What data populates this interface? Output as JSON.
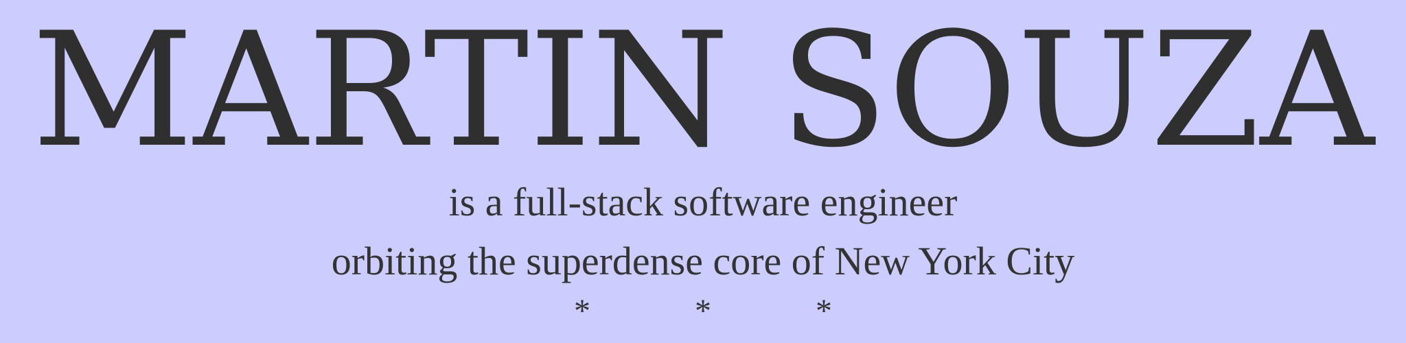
{
  "header": {
    "name": "MARTIN SOUZA",
    "tagline_line1": "is a full-stack software engineer",
    "tagline_line2": "orbiting the superdense core of New York City",
    "divider": "* * *"
  },
  "colors": {
    "background": "#ccccff",
    "text": "#333333"
  }
}
